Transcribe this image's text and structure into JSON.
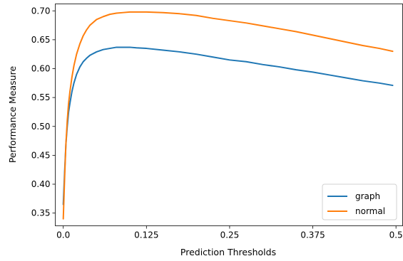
{
  "chart_data": {
    "type": "line",
    "xlabel": "Prediction Thresholds",
    "ylabel": "Performance Measure",
    "xlim": [
      -0.012,
      0.51
    ],
    "ylim": [
      0.328,
      0.712
    ],
    "xticks": [
      0.0,
      0.125,
      0.25,
      0.375,
      0.5
    ],
    "xtick_labels": [
      "0.0",
      "0.125",
      "0.25",
      "0.375",
      "0.5"
    ],
    "yticks": [
      0.35,
      0.4,
      0.45,
      0.5,
      0.55,
      0.6,
      0.65,
      0.7
    ],
    "ytick_labels": [
      "0.35",
      "0.40",
      "0.45",
      "0.50",
      "0.55",
      "0.60",
      "0.65",
      "0.70"
    ],
    "grid": false,
    "legend_position": "lower-right",
    "series": [
      {
        "name": "graph",
        "color": "#1f77b4",
        "x": [
          0.0,
          0.002,
          0.004,
          0.006,
          0.008,
          0.01,
          0.013,
          0.016,
          0.02,
          0.025,
          0.03,
          0.035,
          0.04,
          0.05,
          0.06,
          0.07,
          0.08,
          0.09,
          0.1,
          0.11,
          0.125,
          0.15,
          0.175,
          0.2,
          0.225,
          0.25,
          0.275,
          0.3,
          0.325,
          0.35,
          0.375,
          0.4,
          0.425,
          0.45,
          0.475,
          0.495
        ],
        "values": [
          0.365,
          0.42,
          0.47,
          0.5,
          0.525,
          0.54,
          0.56,
          0.575,
          0.59,
          0.603,
          0.612,
          0.618,
          0.623,
          0.629,
          0.633,
          0.635,
          0.637,
          0.637,
          0.637,
          0.636,
          0.635,
          0.632,
          0.629,
          0.625,
          0.62,
          0.615,
          0.612,
          0.607,
          0.603,
          0.598,
          0.594,
          0.589,
          0.584,
          0.579,
          0.575,
          0.571
        ]
      },
      {
        "name": "normal",
        "color": "#ff7f0e",
        "x": [
          0.0,
          0.002,
          0.004,
          0.006,
          0.008,
          0.01,
          0.013,
          0.016,
          0.02,
          0.025,
          0.03,
          0.035,
          0.04,
          0.05,
          0.06,
          0.07,
          0.08,
          0.09,
          0.1,
          0.11,
          0.125,
          0.15,
          0.175,
          0.2,
          0.225,
          0.25,
          0.275,
          0.3,
          0.325,
          0.35,
          0.375,
          0.4,
          0.425,
          0.45,
          0.475,
          0.495
        ],
        "values": [
          0.34,
          0.41,
          0.47,
          0.51,
          0.54,
          0.56,
          0.585,
          0.605,
          0.625,
          0.643,
          0.657,
          0.667,
          0.675,
          0.685,
          0.69,
          0.694,
          0.696,
          0.697,
          0.698,
          0.698,
          0.698,
          0.697,
          0.695,
          0.692,
          0.687,
          0.683,
          0.679,
          0.674,
          0.669,
          0.664,
          0.658,
          0.652,
          0.646,
          0.64,
          0.635,
          0.63
        ]
      }
    ]
  }
}
